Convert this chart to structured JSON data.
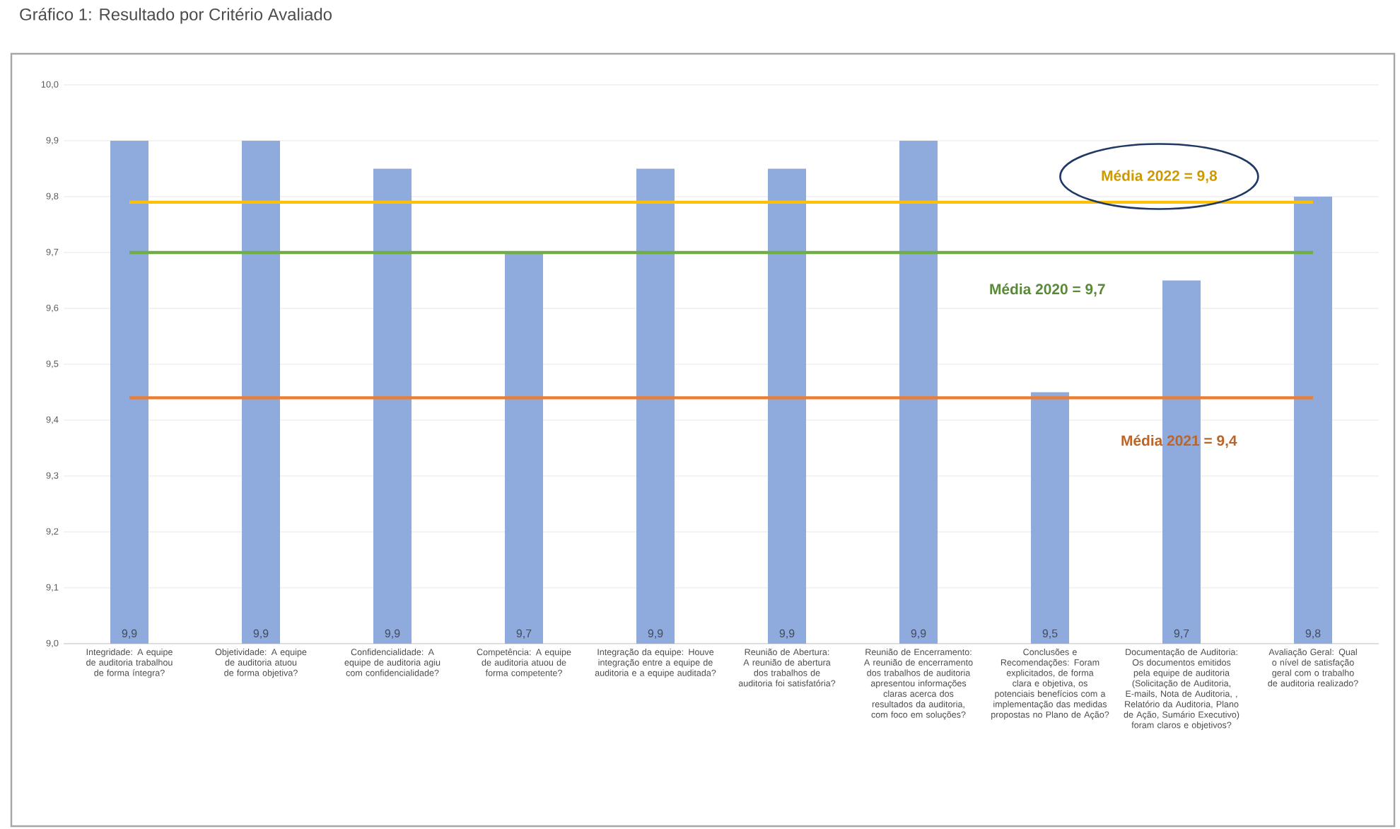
{
  "chart_data": {
    "type": "bar",
    "title": "Gráfico 1: Resultado por Critério Avaliado",
    "categories": [
      "Integridade: A equipe de auditoria trabalhou de forma íntegra?",
      "Objetividade: A equipe de auditoria atuou de forma objetiva?",
      "Confidencialidade: A equipe de auditoria agiu com confidencialidade?",
      "Competência: A equipe de auditoria atuou de forma competente?",
      "Integração da equipe: Houve integração entre a equipe de auditoria e a equipe auditada?",
      "Reunião de Abertura: A reunião de abertura dos trabalhos de auditoria foi satisfatória?",
      "Reunião de Encerramento: A reunião de encerramento dos trabalhos de auditoria apresentou informações claras acerca dos resultados da auditoria, com foco em soluções?",
      "Conclusões e Recomendações: Foram explicitados, de forma clara e objetiva, os potenciais benefícios com a implementação das medidas propostas no Plano de Ação?",
      "Documentação de Auditoria: Os documentos emitidos pela equipe de auditoria (Solicitação de Auditoria, E-mails, Nota de Auditoria, , Relatório da Auditoria, Plano de Ação, Sumário Executivo) foram claros e objetivos?",
      "Avaliação Geral: Qual o nível de satisfação geral com o trabalho de auditoria realizado?"
    ],
    "values": [
      9.9,
      9.9,
      9.85,
      9.7,
      9.85,
      9.85,
      9.9,
      9.45,
      9.65,
      9.8
    ],
    "value_labels": [
      "9,9",
      "9,9",
      "9,9",
      "9,7",
      "9,9",
      "9,9",
      "9,9",
      "9,5",
      "9,7",
      "9,8"
    ],
    "color": "#8faadc",
    "ylim": [
      9.0,
      10.0
    ],
    "yticks": [
      {
        "value": 9.0,
        "label": "9,0"
      },
      {
        "value": 9.1,
        "label": "9,1"
      },
      {
        "value": 9.2,
        "label": "9,2"
      },
      {
        "value": 9.3,
        "label": "9,3"
      },
      {
        "value": 9.4,
        "label": "9,4"
      },
      {
        "value": 9.5,
        "label": "9,5"
      },
      {
        "value": 9.6,
        "label": "9,6"
      },
      {
        "value": 9.7,
        "label": "9,7"
      },
      {
        "value": 9.8,
        "label": "9,8"
      },
      {
        "value": 9.9,
        "label": "9,9"
      },
      {
        "value": 10.0,
        "label": "10,0"
      }
    ],
    "grid": "y",
    "ref_lines": [
      {
        "axis": "y",
        "value": 9.79,
        "label": "Média 2022 = 9,8",
        "color": "#ffc000"
      },
      {
        "axis": "y",
        "value": 9.7,
        "label": "Média 2020 = 9,7",
        "color": "#70ad47"
      },
      {
        "axis": "y",
        "value": 9.44,
        "label": "Média 2021 = 9,4",
        "color": "#ed7d31"
      }
    ]
  }
}
